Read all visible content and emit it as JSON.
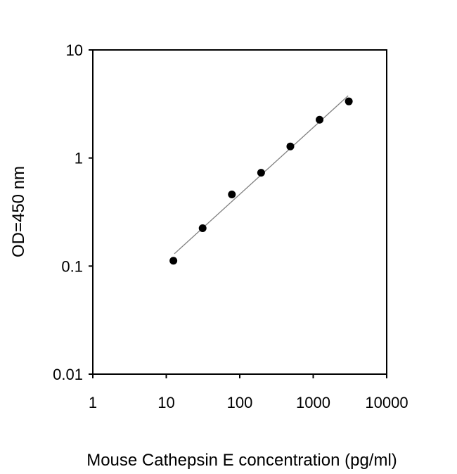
{
  "chart_data": {
    "type": "scatter",
    "title": "",
    "xlabel": "Mouse  Cathepsin E concentration (pg/ml)",
    "ylabel": "OD=450 nm",
    "x_scale": "log",
    "y_scale": "log",
    "xlim": [
      1,
      10000
    ],
    "ylim": [
      0.01,
      10
    ],
    "x_ticks": [
      "1",
      "10",
      "100",
      "1000",
      "10000"
    ],
    "y_ticks": [
      "0.01",
      "0.1",
      "1",
      "10"
    ],
    "grid": false,
    "series": [
      {
        "x": [
          12.5,
          31.25,
          78.125,
          195.3,
          488.3,
          1220.7,
          3051.8
        ],
        "y": [
          0.112,
          0.224,
          0.46,
          0.73,
          1.28,
          2.26,
          3.34
        ]
      }
    ],
    "fit_line": {
      "x": [
        12.9,
        2990
      ],
      "y": [
        0.13,
        3.77
      ]
    },
    "colors": {
      "points": "#000000",
      "fit_line": "#808080",
      "axes": "#000000"
    }
  }
}
